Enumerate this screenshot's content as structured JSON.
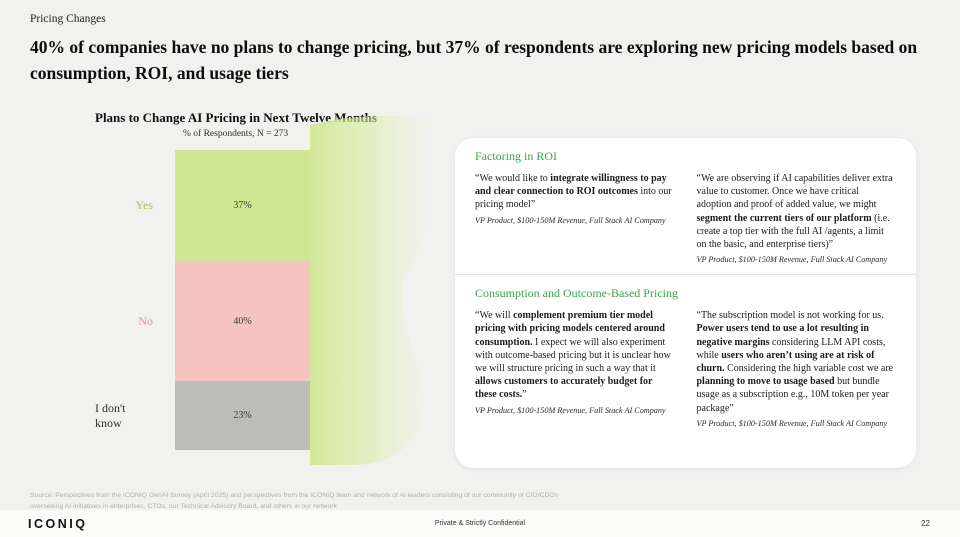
{
  "theme": {
    "background": "#f1f1ef",
    "accent_green": "#3fa24a",
    "card_background": "#ffffff"
  },
  "header": {
    "eyebrow": "Pricing Changes",
    "title": "40% of companies have no plans to change pricing, but 37% of respondents are exploring new pricing models based on consumption, ROI, and usage tiers"
  },
  "chart_data": {
    "type": "bar",
    "variant": "stacked-vertical-100",
    "title": "Plans to Change AI Pricing in Next Twelve Months",
    "subtitle": "% of Respondents, N = 273",
    "n": 273,
    "categories": [
      "Yes",
      "No",
      "I don't know"
    ],
    "values": [
      37,
      40,
      23
    ],
    "unit": "%",
    "colors": [
      "#cfe792",
      "#f6c3c3",
      "#bcbcba"
    ],
    "label_colors": [
      "#a7c355",
      "#e39494",
      "#2f2f2f"
    ],
    "legend": "none",
    "grid": "off"
  },
  "panel": {
    "sections": [
      {
        "heading": "Factoring in ROI",
        "quotes": [
          {
            "segments": [
              {
                "t": "“We would like to ",
                "b": false
              },
              {
                "t": "integrate willingness to pay and clear connection to ROI outcomes",
                "b": true
              },
              {
                "t": " into our pricing model”",
                "b": false
              }
            ],
            "attribution": "VP Product, $100-150M Revenue, Full Stack AI Company"
          },
          {
            "segments": [
              {
                "t": "“We are observing if AI capabilities deliver extra value to customer. Once we have critical adoption and proof of added value, we might ",
                "b": false
              },
              {
                "t": "segment the current tiers of our platform",
                "b": true
              },
              {
                "t": " (i.e. create a top tier with the full AI /agents, a limit on the basic, and enterprise tiers)”",
                "b": false
              }
            ],
            "attribution": "VP Product, $100-150M Revenue, Full Stack AI Company"
          }
        ]
      },
      {
        "heading": "Consumption and Outcome-Based Pricing",
        "quotes": [
          {
            "segments": [
              {
                "t": "“We will ",
                "b": false
              },
              {
                "t": "complement premium tier model pricing with pricing models centered around consumption.",
                "b": true
              },
              {
                "t": " I expect we will also experiment with outcome-based pricing but it is unclear how we will structure pricing in such a way that it ",
                "b": false
              },
              {
                "t": "allows customers to accurately budget for these costs.",
                "b": true
              },
              {
                "t": "”",
                "b": false
              }
            ],
            "attribution": "VP Product, $100-150M Revenue, Full Stack AI Company"
          },
          {
            "segments": [
              {
                "t": "“The subscription model is not working for us. ",
                "b": false
              },
              {
                "t": "Power users tend to use a lot resulting in negative margins",
                "b": true
              },
              {
                "t": " considering LLM API costs, while ",
                "b": false
              },
              {
                "t": "users who aren’t using are at risk of churn.",
                "b": true
              },
              {
                "t": " Considering the high variable cost we are ",
                "b": false
              },
              {
                "t": "planning to move to usage based",
                "b": true
              },
              {
                "t": " but bundle usage as a subscription e.g., 10M token per year package”",
                "b": false
              }
            ],
            "attribution": "VP Product, $100-150M Revenue, Full Stack AI Company"
          }
        ]
      }
    ]
  },
  "footer": {
    "source": "Source: Perspectives from the ICONIQ GenAI Survey (April 2025) and perspectives from the ICONIQ team and network of AI leaders consisting of our community of CIO/CDOs overseeing AI initiatives in enterprises, CTOs, our Technical Advisory Board, and others in our network",
    "logo": "ICONIQ",
    "confidential": "Private & Strictly Confidential",
    "page_number": "22"
  }
}
